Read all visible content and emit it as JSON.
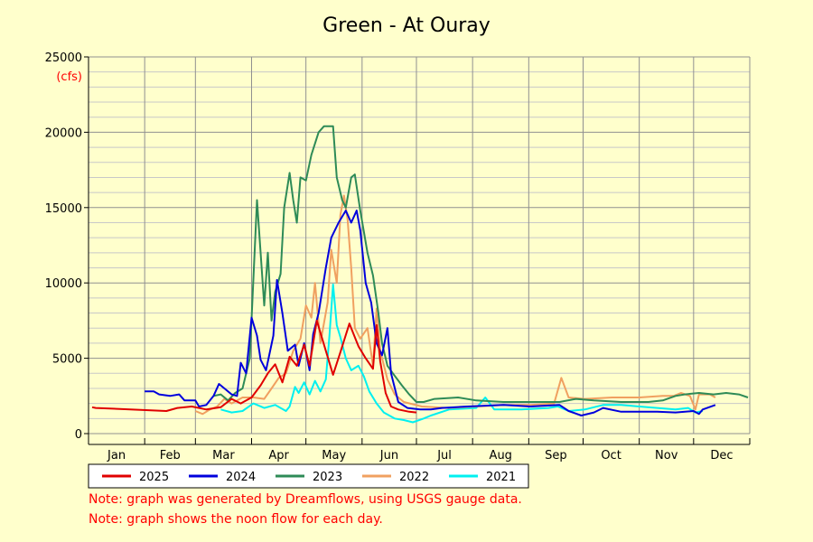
{
  "chart_data": {
    "type": "line",
    "title": "Green - At Ouray",
    "ylabel": "(cfs)",
    "xlabel": "",
    "ylim": [
      0,
      25000
    ],
    "yticks": [
      0,
      5000,
      10000,
      15000,
      20000,
      25000
    ],
    "xlim": [
      1,
      366
    ],
    "months": [
      "Jan",
      "Feb",
      "Mar",
      "Apr",
      "May",
      "Jun",
      "Jul",
      "Aug",
      "Sep",
      "Oct",
      "Nov",
      "Dec"
    ],
    "grid": true,
    "legend_position": "bottom",
    "series": [
      {
        "name": "2025",
        "color": "#e00000",
        "points": [
          [
            3,
            1750
          ],
          [
            5,
            1700
          ],
          [
            44,
            1500
          ],
          [
            50,
            1700
          ],
          [
            58,
            1800
          ],
          [
            66,
            1600
          ],
          [
            74,
            1750
          ],
          [
            80,
            2300
          ],
          [
            85,
            2000
          ],
          [
            91,
            2400
          ],
          [
            96,
            3200
          ],
          [
            100,
            4000
          ],
          [
            104,
            4600
          ],
          [
            108,
            3400
          ],
          [
            112,
            5100
          ],
          [
            116,
            4500
          ],
          [
            120,
            5900
          ],
          [
            123,
            4500
          ],
          [
            127,
            7500
          ],
          [
            132,
            5500
          ],
          [
            136,
            3900
          ],
          [
            140,
            5400
          ],
          [
            145,
            7300
          ],
          [
            150,
            5800
          ],
          [
            154,
            5000
          ],
          [
            158,
            4300
          ],
          [
            160,
            7200
          ],
          [
            162,
            4800
          ],
          [
            165,
            2700
          ],
          [
            168,
            1800
          ],
          [
            172,
            1600
          ],
          [
            178,
            1450
          ],
          [
            182,
            1400
          ]
        ]
      },
      {
        "name": "2024",
        "color": "#0000dd",
        "points": [
          [
            32,
            2800
          ],
          [
            37,
            2800
          ],
          [
            40,
            2600
          ],
          [
            46,
            2500
          ],
          [
            51,
            2600
          ],
          [
            54,
            2200
          ],
          [
            60,
            2200
          ],
          [
            62,
            1800
          ],
          [
            66,
            1900
          ],
          [
            70,
            2500
          ],
          [
            73,
            3300
          ],
          [
            77,
            2900
          ],
          [
            80,
            2600
          ],
          [
            83,
            2500
          ],
          [
            85,
            4700
          ],
          [
            88,
            4000
          ],
          [
            91,
            7700
          ],
          [
            94,
            6500
          ],
          [
            96,
            4900
          ],
          [
            99,
            4200
          ],
          [
            103,
            6500
          ],
          [
            105,
            10200
          ],
          [
            108,
            8000
          ],
          [
            111,
            5500
          ],
          [
            115,
            5900
          ],
          [
            117,
            4500
          ],
          [
            120,
            6000
          ],
          [
            123,
            4200
          ],
          [
            125,
            6600
          ],
          [
            128,
            8000
          ],
          [
            132,
            11000
          ],
          [
            135,
            13000
          ],
          [
            139,
            14000
          ],
          [
            143,
            14800
          ],
          [
            146,
            14000
          ],
          [
            149,
            14800
          ],
          [
            151,
            13500
          ],
          [
            154,
            10000
          ],
          [
            157,
            8700
          ],
          [
            160,
            6000
          ],
          [
            163,
            5200
          ],
          [
            166,
            7000
          ],
          [
            168,
            4000
          ],
          [
            172,
            2100
          ],
          [
            177,
            1700
          ],
          [
            184,
            1600
          ],
          [
            190,
            1600
          ],
          [
            196,
            1700
          ],
          [
            210,
            1800
          ],
          [
            230,
            1900
          ],
          [
            245,
            1800
          ],
          [
            261,
            1900
          ],
          [
            266,
            1500
          ],
          [
            273,
            1200
          ],
          [
            280,
            1400
          ],
          [
            285,
            1700
          ],
          [
            295,
            1450
          ],
          [
            315,
            1450
          ],
          [
            325,
            1400
          ],
          [
            335,
            1500
          ],
          [
            338,
            1300
          ],
          [
            340,
            1600
          ],
          [
            347,
            1900
          ]
        ]
      },
      {
        "name": "2023",
        "color": "#2e8b57",
        "points": [
          [
            70,
            2500
          ],
          [
            74,
            2600
          ],
          [
            78,
            2200
          ],
          [
            82,
            2700
          ],
          [
            86,
            3000
          ],
          [
            90,
            5000
          ],
          [
            94,
            15500
          ],
          [
            96,
            12000
          ],
          [
            98,
            8500
          ],
          [
            100,
            12000
          ],
          [
            102,
            7500
          ],
          [
            104,
            9400
          ],
          [
            107,
            10600
          ],
          [
            109,
            15000
          ],
          [
            112,
            17300
          ],
          [
            114,
            15500
          ],
          [
            116,
            14000
          ],
          [
            118,
            17000
          ],
          [
            121,
            16800
          ],
          [
            124,
            18500
          ],
          [
            128,
            20000
          ],
          [
            131,
            20400
          ],
          [
            136,
            20400
          ],
          [
            138,
            17000
          ],
          [
            141,
            15500
          ],
          [
            143,
            15000
          ],
          [
            146,
            17000
          ],
          [
            148,
            17200
          ],
          [
            151,
            14800
          ],
          [
            155,
            12000
          ],
          [
            158,
            10500
          ],
          [
            161,
            8000
          ],
          [
            163,
            6000
          ],
          [
            166,
            4500
          ],
          [
            169,
            4000
          ],
          [
            174,
            3200
          ],
          [
            178,
            2600
          ],
          [
            182,
            2100
          ],
          [
            186,
            2100
          ],
          [
            192,
            2300
          ],
          [
            205,
            2400
          ],
          [
            215,
            2200
          ],
          [
            230,
            2100
          ],
          [
            245,
            2100
          ],
          [
            261,
            2100
          ],
          [
            270,
            2300
          ],
          [
            280,
            2200
          ],
          [
            295,
            2100
          ],
          [
            310,
            2100
          ],
          [
            318,
            2200
          ],
          [
            325,
            2500
          ],
          [
            330,
            2600
          ],
          [
            338,
            2700
          ],
          [
            346,
            2600
          ],
          [
            353,
            2700
          ],
          [
            360,
            2600
          ],
          [
            365,
            2400
          ]
        ]
      },
      {
        "name": "2022",
        "color": "#f0a060",
        "points": [
          [
            60,
            1500
          ],
          [
            64,
            1300
          ],
          [
            68,
            1600
          ],
          [
            72,
            1800
          ],
          [
            76,
            2300
          ],
          [
            80,
            2000
          ],
          [
            86,
            2400
          ],
          [
            92,
            2400
          ],
          [
            98,
            2300
          ],
          [
            102,
            3000
          ],
          [
            106,
            3700
          ],
          [
            110,
            4000
          ],
          [
            114,
            5500
          ],
          [
            118,
            6300
          ],
          [
            121,
            8500
          ],
          [
            124,
            7700
          ],
          [
            126,
            10000
          ],
          [
            129,
            6000
          ],
          [
            133,
            8700
          ],
          [
            135,
            12200
          ],
          [
            138,
            10000
          ],
          [
            140,
            14500
          ],
          [
            142,
            15800
          ],
          [
            144,
            14200
          ],
          [
            146,
            11000
          ],
          [
            148,
            7000
          ],
          [
            151,
            6300
          ],
          [
            155,
            7000
          ],
          [
            158,
            4500
          ],
          [
            160,
            8300
          ],
          [
            162,
            5500
          ],
          [
            166,
            3600
          ],
          [
            170,
            2600
          ],
          [
            175,
            2100
          ],
          [
            185,
            1800
          ],
          [
            200,
            1700
          ],
          [
            215,
            1800
          ],
          [
            230,
            1900
          ],
          [
            245,
            1900
          ],
          [
            258,
            2000
          ],
          [
            262,
            3700
          ],
          [
            266,
            2400
          ],
          [
            275,
            2300
          ],
          [
            290,
            2400
          ],
          [
            305,
            2400
          ],
          [
            318,
            2500
          ],
          [
            324,
            2500
          ],
          [
            328,
            2700
          ],
          [
            333,
            2500
          ],
          [
            336,
            1600
          ],
          [
            338,
            2600
          ],
          [
            344,
            2600
          ],
          [
            347,
            2400
          ]
        ]
      },
      {
        "name": "2021",
        "color": "#00f0f0",
        "points": [
          [
            74,
            1600
          ],
          [
            80,
            1400
          ],
          [
            86,
            1500
          ],
          [
            92,
            2000
          ],
          [
            98,
            1700
          ],
          [
            104,
            1900
          ],
          [
            110,
            1500
          ],
          [
            112,
            1800
          ],
          [
            115,
            3100
          ],
          [
            117,
            2700
          ],
          [
            120,
            3400
          ],
          [
            123,
            2600
          ],
          [
            126,
            3500
          ],
          [
            129,
            2800
          ],
          [
            132,
            3600
          ],
          [
            134,
            6500
          ],
          [
            136,
            9900
          ],
          [
            138,
            7200
          ],
          [
            140,
            6400
          ],
          [
            143,
            5000
          ],
          [
            146,
            4200
          ],
          [
            150,
            4500
          ],
          [
            153,
            3800
          ],
          [
            156,
            2800
          ],
          [
            160,
            2000
          ],
          [
            164,
            1400
          ],
          [
            170,
            1000
          ],
          [
            175,
            900
          ],
          [
            180,
            750
          ],
          [
            186,
            1000
          ],
          [
            190,
            1200
          ],
          [
            200,
            1600
          ],
          [
            215,
            1700
          ],
          [
            220,
            2400
          ],
          [
            225,
            1600
          ],
          [
            240,
            1600
          ],
          [
            255,
            1700
          ],
          [
            260,
            1800
          ],
          [
            266,
            1500
          ],
          [
            275,
            1600
          ],
          [
            285,
            1900
          ],
          [
            295,
            1900
          ],
          [
            305,
            1800
          ],
          [
            315,
            1700
          ],
          [
            325,
            1600
          ],
          [
            332,
            1700
          ],
          [
            336,
            1400
          ],
          [
            340,
            1500
          ]
        ]
      }
    ]
  },
  "notes": [
    "Note: graph was generated by Dreamflows, using USGS gauge data.",
    "Note: graph shows the noon flow for each day."
  ]
}
